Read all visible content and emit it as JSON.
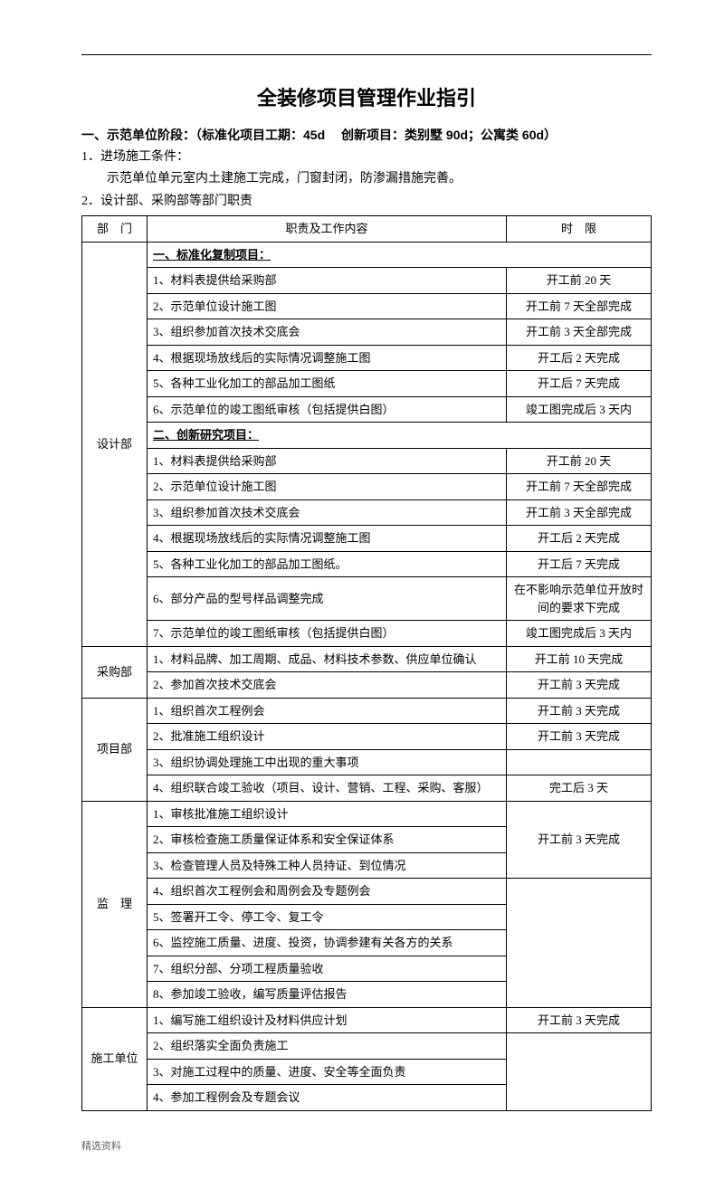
{
  "title": "全装修项目管理作业指引",
  "section1_head": "一、示范单位阶段：（标准化项目工期：45d　 创新项目：类别墅 90d；公寓类 60d）",
  "line1": "1．进场施工条件：",
  "line1b": "示范单位单元室内土建施工完成，门窗封闭，防渗漏措施完善。",
  "line2": "2．设计部、采购部等部门职责",
  "headers": {
    "dept": "部　门",
    "duty": "职责及工作内容",
    "time": "时　限"
  },
  "depts": {
    "sheji": "设计部",
    "caigou": "采购部",
    "xiangmu": "项目部",
    "jianli": "监　理",
    "shigong": "施工单位"
  },
  "sub1": "一、标准化复制项目：",
  "sub2": "二、创新研究项目：",
  "sj_a": [
    {
      "d": "1、材料表提供给采购部",
      "t": "开工前 20 天"
    },
    {
      "d": "2、示范单位设计施工图",
      "t": "开工前 7 天全部完成"
    },
    {
      "d": "3、组织参加首次技术交底会",
      "t": "开工前 3 天全部完成"
    },
    {
      "d": "4、根据现场放线后的实际情况调整施工图",
      "t": "开工后 2 天完成"
    },
    {
      "d": "5、各种工业化加工的部品加工图纸",
      "t": "开工后 7 天完成"
    },
    {
      "d": "6、示范单位的竣工图纸审核（包括提供白图）",
      "t": "竣工图完成后 3 天内"
    }
  ],
  "sj_b": [
    {
      "d": "1、材料表提供给采购部",
      "t": "开工前 20 天"
    },
    {
      "d": "2、示范单位设计施工图",
      "t": "开工前 7 天全部完成"
    },
    {
      "d": "3、组织参加首次技术交底会",
      "t": "开工前 3 天全部完成"
    },
    {
      "d": "4、根据现场放线后的实际情况调整施工图",
      "t": "开工后 2 天完成"
    },
    {
      "d": "5、各种工业化加工的部品加工图纸。",
      "t": "开工后 7 天完成"
    },
    {
      "d": "6、部分产品的型号样品调整完成",
      "t": "在不影响示范单位开放时间的要求下完成"
    },
    {
      "d": "7、示范单位的竣工图纸审核（包括提供白图）",
      "t": "竣工图完成后 3 天内"
    }
  ],
  "cg": [
    {
      "d": "1、材料品牌、加工周期、成品、材料技术参数、供应单位确认",
      "t": "开工前 10 天完成"
    },
    {
      "d": "2、参加首次技术交底会",
      "t": "开工前 3 天完成"
    }
  ],
  "xm": [
    {
      "d": "1、组织首次工程例会",
      "t": "开工前 3 天完成"
    },
    {
      "d": "2、批准施工组织设计",
      "t": "开工前 3 天完成"
    },
    {
      "d": "3、组织协调处理施工中出现的重大事项",
      "t": ""
    },
    {
      "d": "4、组织联合竣工验收（项目、设计、营销、工程、采购、客服）",
      "t": "完工后 3 天"
    }
  ],
  "jl": [
    {
      "d": "1、审核批准施工组织设计",
      "t": ""
    },
    {
      "d": "2、审核检查施工质量保证体系和安全保证体系",
      "t": "开工前 3 天完成"
    },
    {
      "d": "3、检查管理人员及特殊工种人员持证、到位情况",
      "t": ""
    },
    {
      "d": "4、组织首次工程例会和周例会及专题例会",
      "t": ""
    },
    {
      "d": "5、签署开工令、停工令、复工令",
      "t": ""
    },
    {
      "d": "6、监控施工质量、进度、投资，协调参建有关各方的关系",
      "t": ""
    },
    {
      "d": "7、组织分部、分项工程质量验收",
      "t": ""
    },
    {
      "d": "8、参加竣工验收，编写质量评估报告",
      "t": ""
    }
  ],
  "sg": [
    {
      "d": "1、编写施工组织设计及材料供应计划",
      "t": "开工前 3 天完成"
    },
    {
      "d": "2、组织落实全面负责施工",
      "t": ""
    },
    {
      "d": "3、对施工过程中的质量、进度、安全等全面负责",
      "t": ""
    },
    {
      "d": "4、参加工程例会及专题会议",
      "t": ""
    }
  ],
  "footer": "精选资料"
}
